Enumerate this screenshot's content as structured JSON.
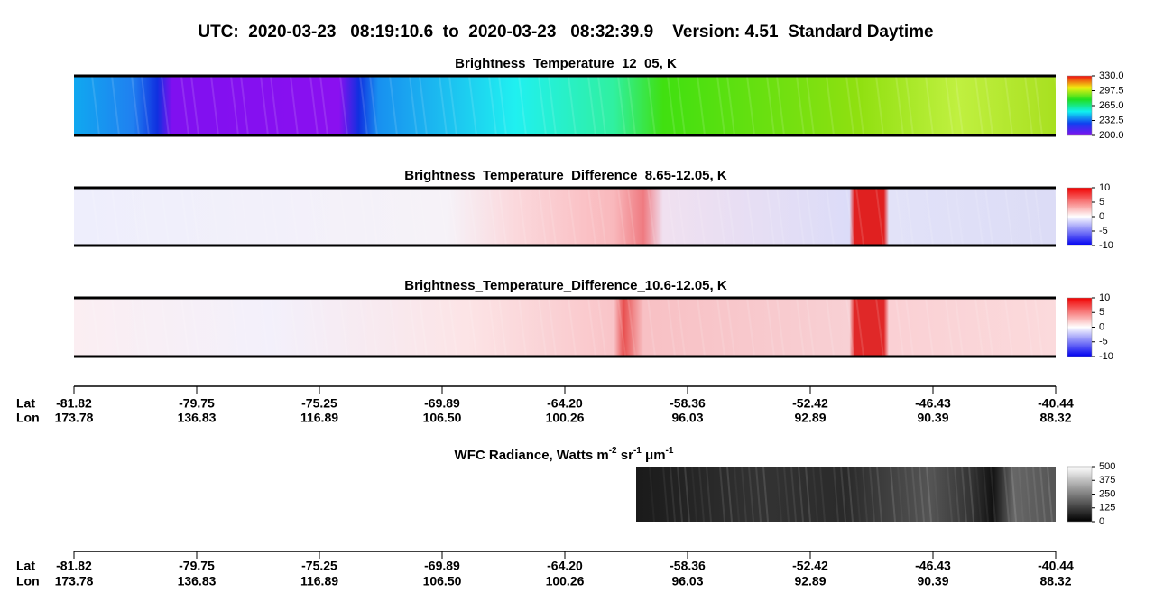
{
  "title": "UTC:  2020-03-23   08:19:10.6  to  2020-03-23   08:32:39.9    Version: 4.51  Standard Daytime",
  "panels": [
    {
      "title": "Brightness_Temperature_12_05, K",
      "colorbar": {
        "lim": [
          200,
          330
        ],
        "ticks": [
          {
            "value": 330,
            "label": "330.0"
          },
          297.5,
          {
            "value": 265,
            "label": "265.0"
          },
          232.5,
          {
            "value": 200,
            "label": "200.0"
          }
        ]
      }
    },
    {
      "title": "Brightness_Temperature_Difference_8.65-12.05, K",
      "colorbar": {
        "lim": [
          -10,
          10
        ],
        "ticks": [
          10,
          5,
          0,
          -5,
          -10
        ]
      }
    },
    {
      "title": "Brightness_Temperature_Difference_10.6-12.05, K",
      "colorbar": {
        "lim": [
          -10,
          10
        ],
        "ticks": [
          10,
          5,
          0,
          -5,
          -10
        ]
      }
    }
  ],
  "wfc": {
    "title_parts": [
      "WFC Radiance, Watts m",
      "-2",
      " sr",
      "-1",
      " μm",
      "-1"
    ],
    "colorbar": {
      "lim": [
        0,
        500
      ],
      "ticks": [
        500,
        375,
        250,
        125,
        0
      ]
    }
  },
  "axis": {
    "lat_label": "Lat",
    "lon_label": "Lon",
    "lat_ticks": [
      -81.82,
      -79.75,
      -75.25,
      -69.89,
      {
        "value": -64.2,
        "label": "-64.20"
      },
      -58.36,
      -52.42,
      -46.43,
      -40.44
    ],
    "lon_ticks": [
      173.78,
      136.83,
      116.89,
      {
        "value": 106.5,
        "label": "106.50"
      },
      100.26,
      96.03,
      92.89,
      90.39,
      88.32
    ]
  }
}
